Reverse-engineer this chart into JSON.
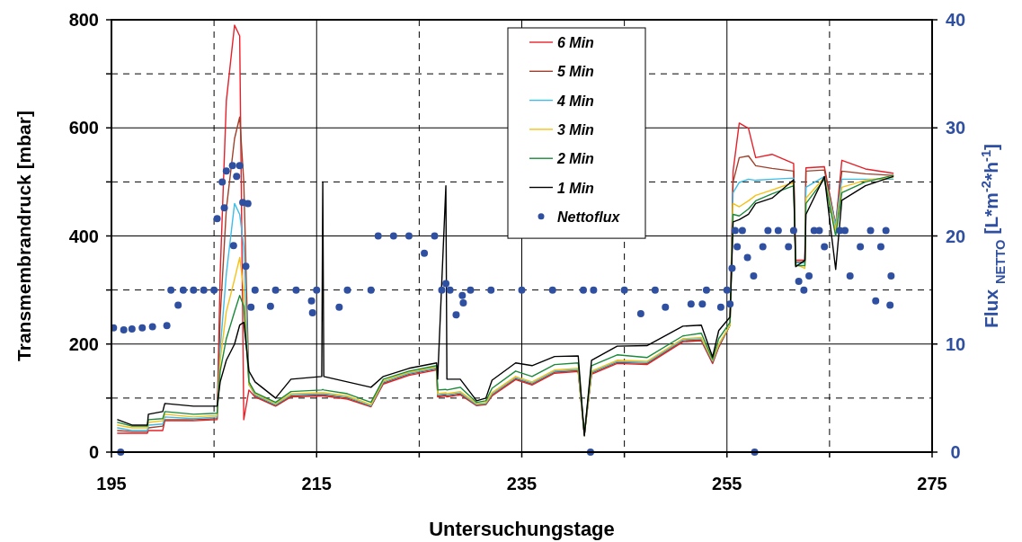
{
  "chart_data": {
    "type": "line",
    "xlabel": "Untersuchungstage",
    "ylabel": "Transmembrandruck   [mbar]",
    "y2label": "Flux $_{NETTO}$  [L*m$^{-2}$*h$^{-1}$]",
    "xlim": [
      195,
      275
    ],
    "xticks": [
      195,
      {
        "value": 205,
        "label": null
      },
      215,
      {
        "value": 225,
        "label": null
      },
      235,
      {
        "value": 245,
        "label": null
      },
      255,
      {
        "value": 265,
        "label": null
      },
      275
    ],
    "ylim": [
      0,
      800
    ],
    "yticks": [
      0,
      {
        "value": 100,
        "label": null
      },
      200,
      {
        "value": 300,
        "label": null
      },
      400,
      {
        "value": 500,
        "label": null
      },
      600,
      {
        "value": 700,
        "label": null
      },
      800
    ],
    "y2lim": [
      0,
      40
    ],
    "y2ticks": [
      0,
      10,
      20,
      30,
      40
    ],
    "grid": true,
    "legend": "top",
    "line_style": "solid",
    "x": [
      195.6,
      197.0,
      198.5,
      198.6,
      200.0,
      200.2,
      203.0,
      205.3,
      205.6,
      206.2,
      207.0,
      207.5,
      207.9,
      208.4,
      209.0,
      211.0,
      212.5,
      215.5,
      215.6,
      215.7,
      218.0,
      220.3,
      221.5,
      224.0,
      226.7,
      226.8,
      227.6,
      227.7,
      229.0,
      230.6,
      231.5,
      232.1,
      234.4,
      236.0,
      238.2,
      240.5,
      241.1,
      241.8,
      244.3,
      247.2,
      250.7,
      252.5,
      253.6,
      254.2,
      255.3,
      255.6,
      256.2,
      257.1,
      257.8,
      259.4,
      261.5,
      261.7,
      262.6,
      262.7,
      264.5,
      265.6,
      266.2,
      268.5,
      271.2
    ],
    "series": [
      {
        "name": "6 Min",
        "color": "#e8202a",
        "values": [
          35,
          35,
          35,
          40,
          40,
          58,
          58,
          60,
          330,
          650,
          790,
          770,
          60,
          115,
          102,
          85,
          102,
          104,
          104,
          104,
          98,
          84,
          126,
          142,
          152,
          102,
          104,
          102,
          106,
          86,
          88,
          104,
          134,
          124,
          146,
          149,
          32,
          144,
          164,
          162,
          204,
          206,
          164,
          194,
          235,
          520,
          609,
          599,
          545,
          551,
          534,
          355,
          355,
          526,
          528,
          420,
          540,
          524,
          516
        ]
      },
      {
        "name": "5 Min",
        "color": "#a0402a",
        "values": [
          40,
          38,
          38,
          45,
          48,
          60,
          60,
          62,
          250,
          450,
          580,
          620,
          500,
          130,
          104,
          86,
          104,
          106,
          106,
          106,
          100,
          85,
          128,
          144,
          154,
          104,
          106,
          104,
          108,
          87,
          89,
          106,
          136,
          126,
          148,
          151,
          32,
          146,
          166,
          164,
          206,
          208,
          166,
          196,
          235,
          500,
          545,
          548,
          530,
          525,
          520,
          352,
          352,
          520,
          522,
          420,
          520,
          515,
          512
        ]
      },
      {
        "name": "4 Min",
        "color": "#3dbde8",
        "values": [
          45,
          40,
          40,
          50,
          52,
          65,
          62,
          65,
          190,
          330,
          460,
          440,
          380,
          125,
          106,
          88,
          106,
          108,
          108,
          108,
          102,
          86,
          130,
          146,
          156,
          106,
          108,
          106,
          110,
          88,
          90,
          108,
          138,
          128,
          150,
          153,
          32,
          148,
          168,
          166,
          208,
          210,
          168,
          198,
          235,
          480,
          499,
          505,
          503,
          505,
          507,
          350,
          350,
          490,
          510,
          420,
          505,
          505,
          505
        ]
      },
      {
        "name": "3 Min",
        "color": "#f5c116",
        "values": [
          50,
          45,
          45,
          55,
          58,
          70,
          65,
          68,
          170,
          260,
          320,
          360,
          300,
          125,
          108,
          90,
          108,
          110,
          110,
          110,
          104,
          88,
          132,
          148,
          158,
          108,
          110,
          108,
          112,
          90,
          92,
          110,
          140,
          130,
          152,
          155,
          32,
          150,
          170,
          168,
          210,
          212,
          170,
          200,
          235,
          460,
          454,
          465,
          475,
          485,
          499,
          348,
          340,
          470,
          508,
          410,
          490,
          503,
          508
        ]
      },
      {
        "name": "2 Min",
        "color": "#1a8a3a",
        "values": [
          55,
          48,
          48,
          60,
          62,
          75,
          70,
          72,
          150,
          210,
          260,
          290,
          270,
          130,
          110,
          92,
          112,
          115,
          116,
          115,
          108,
          92,
          135,
          150,
          160,
          115,
          116,
          115,
          120,
          92,
          95,
          118,
          150,
          140,
          162,
          165,
          32,
          160,
          180,
          175,
          215,
          220,
          172,
          210,
          240,
          440,
          437,
          450,
          465,
          478,
          493,
          345,
          345,
          460,
          505,
          400,
          480,
          500,
          512
        ]
      },
      {
        "name": "1 Min",
        "color": "#000000",
        "values": [
          60,
          50,
          50,
          70,
          75,
          90,
          85,
          85,
          130,
          170,
          200,
          235,
          240,
          150,
          130,
          100,
          135,
          140,
          500,
          140,
          130,
          120,
          140,
          155,
          165,
          135,
          493,
          135,
          135,
          95,
          100,
          133,
          165,
          160,
          177,
          178,
          30,
          170,
          196,
          197,
          233,
          235,
          176,
          225,
          250,
          426,
          430,
          440,
          460,
          470,
          504,
          343,
          355,
          440,
          510,
          338,
          466,
          493,
          510
        ]
      },
      {
        "name": "Nettoflux",
        "type": "scatter",
        "axis": "y2",
        "marker": "circle",
        "color": "#2f4fa0",
        "x": [
          195.2,
          195.9,
          196.2,
          197.0,
          198.0,
          199.0,
          200.4,
          200.8,
          201.5,
          202.0,
          203.0,
          204.0,
          205.0,
          205.3,
          205.8,
          206.0,
          206.2,
          206.8,
          206.9,
          207.2,
          207.5,
          207.8,
          208.1,
          208.3,
          208.6,
          209.0,
          210.5,
          211.0,
          213.0,
          214.5,
          214.6,
          215.0,
          217.2,
          218.0,
          220.3,
          221.0,
          222.5,
          224.0,
          225.5,
          226.5,
          227.2,
          227.6,
          228.0,
          228.6,
          229.2,
          229.3,
          230.0,
          232.0,
          235.0,
          238.0,
          241.0,
          241.7,
          242.0,
          245.0,
          246.6,
          248.0,
          249.0,
          251.5,
          252.6,
          253.0,
          254.4,
          255.0,
          255.3,
          255.5,
          255.8,
          256.0,
          256.5,
          257.0,
          257.6,
          257.7,
          258.5,
          259.0,
          260.0,
          261.0,
          261.5,
          262.0,
          262.5,
          263.0,
          263.5,
          264.0,
          264.5,
          266.0,
          266.5,
          267.0,
          268.0,
          269.0,
          269.5,
          270.0,
          270.5,
          270.9,
          271.0
        ],
        "values": [
          11.5,
          0,
          11.3,
          11.4,
          11.5,
          11.6,
          11.7,
          15,
          13.6,
          15,
          15,
          15,
          15,
          21.6,
          25,
          22.6,
          26,
          26.5,
          19.1,
          25.5,
          26.5,
          23.1,
          17.2,
          23,
          13.4,
          15,
          13.5,
          15,
          15,
          14,
          12.9,
          15,
          13.4,
          15,
          15,
          20,
          20,
          20,
          18.4,
          20,
          15,
          15.6,
          15,
          12.7,
          14.5,
          13.8,
          15,
          15,
          15,
          15,
          15,
          0,
          15,
          15,
          12.8,
          15,
          13.4,
          13.7,
          13.7,
          15,
          13.4,
          15,
          13.7,
          17,
          20.5,
          19,
          20.5,
          18,
          16.3,
          0,
          19,
          20.5,
          20.5,
          19,
          20.5,
          15.8,
          15,
          16.3,
          20.5,
          20.5,
          19,
          20.5,
          20.5,
          16.3,
          19,
          20.5,
          14,
          19,
          20.5,
          13.6,
          16.3
        ]
      }
    ]
  }
}
